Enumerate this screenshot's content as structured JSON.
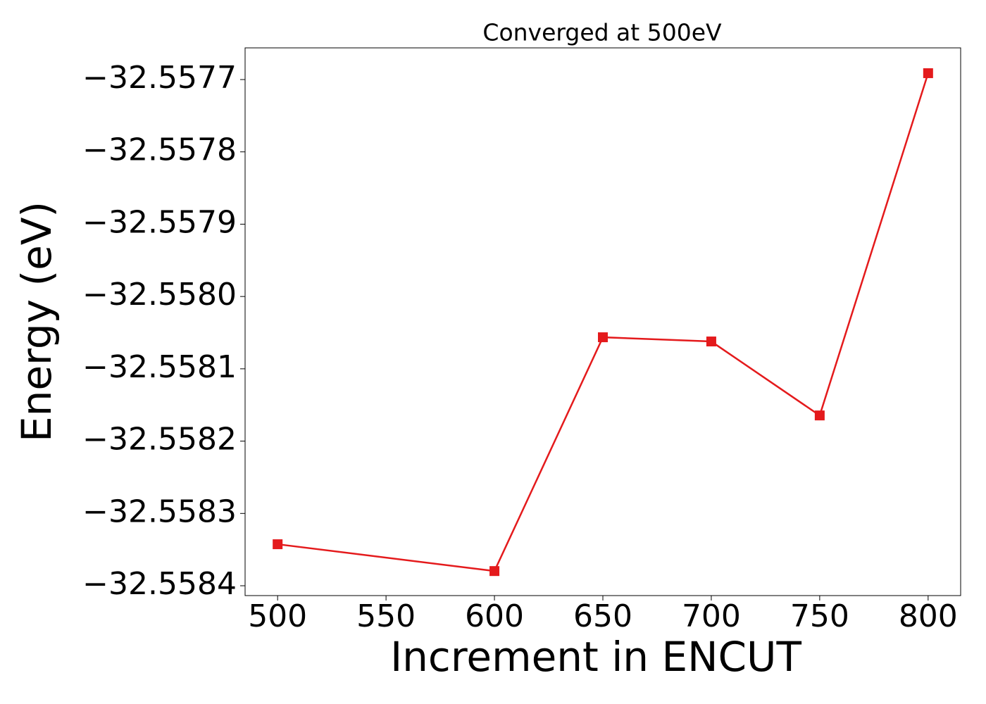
{
  "chart_data": {
    "type": "line",
    "title": "Converged at 500eV",
    "x_label": "Increment in ENCUT",
    "y_label": "Energy (eV)",
    "x": [
      500,
      600,
      650,
      700,
      750,
      800
    ],
    "series": [
      {
        "color": "#e41a1c",
        "marker": "square",
        "values": [
          -32.5583426,
          -32.5583797,
          -32.5580564,
          -32.5580622,
          -32.5581645,
          -32.5576912
        ]
      }
    ],
    "xlim": [
      485,
      815
    ],
    "xticks": [
      500,
      550,
      600,
      650,
      700,
      750,
      800
    ],
    "ylim": [
      -32.5584136,
      -32.5576562
    ],
    "yticks": [
      {
        "value": -32.5584,
        "label": "−32.5584"
      },
      {
        "value": -32.5583,
        "label": "−32.5583"
      },
      {
        "value": -32.5582,
        "label": "−32.5582"
      },
      {
        "value": -32.5581,
        "label": "−32.5581"
      },
      {
        "value": -32.558,
        "label": "−32.5580"
      },
      {
        "value": -32.5579,
        "label": "−32.5579"
      },
      {
        "value": -32.5578,
        "label": "−32.5578"
      },
      {
        "value": -32.5577,
        "label": "−32.5577"
      }
    ],
    "grid": false
  }
}
